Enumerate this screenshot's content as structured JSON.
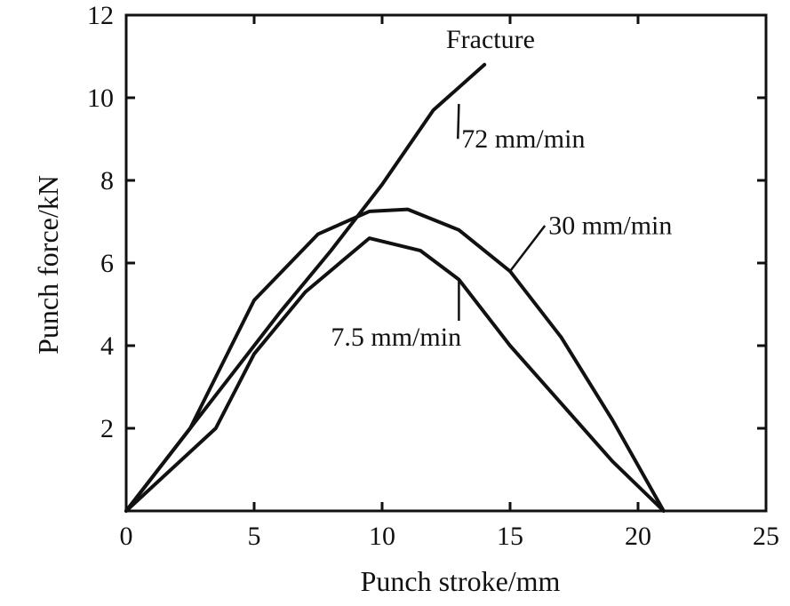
{
  "chart_data": {
    "type": "line",
    "title": "",
    "xlabel": "Punch stroke/mm",
    "ylabel": "Punch force/kN",
    "xlim": [
      0,
      25
    ],
    "ylim": [
      0,
      12
    ],
    "xticks": [
      0,
      5,
      10,
      15,
      20,
      25
    ],
    "yticks": [
      0,
      2,
      4,
      6,
      8,
      10,
      12
    ],
    "grid": false,
    "legend": "none",
    "series": [
      {
        "name": "72 mm/min",
        "x": [
          0,
          2,
          4,
          6,
          8,
          10,
          12,
          14
        ],
        "y": [
          0,
          1.6,
          3.2,
          4.8,
          6.3,
          7.9,
          9.7,
          10.8
        ]
      },
      {
        "name": "30 mm/min",
        "x": [
          0,
          2.5,
          5,
          7.5,
          9.5,
          11,
          13,
          15,
          17,
          19,
          21
        ],
        "y": [
          0,
          2.0,
          5.1,
          6.7,
          7.25,
          7.3,
          6.8,
          5.8,
          4.2,
          2.2,
          0
        ]
      },
      {
        "name": "7.5 mm/min",
        "x": [
          0,
          3.5,
          5,
          7,
          9.5,
          11.5,
          13,
          15,
          17,
          19,
          21
        ],
        "y": [
          0,
          2.0,
          3.8,
          5.3,
          6.6,
          6.3,
          5.6,
          4.0,
          2.6,
          1.2,
          0
        ]
      }
    ],
    "annotations": [
      {
        "text": "Fracture",
        "x": 12.5,
        "y": 11.2
      },
      {
        "text": "72 mm/min",
        "x": 13.1,
        "y": 8.8,
        "point_x": 13.0,
        "point_y": 9.85
      },
      {
        "text": "30 mm/min",
        "x": 16.5,
        "y": 6.7,
        "point_x": 15.0,
        "point_y": 5.8
      },
      {
        "text": "7.5 mm/min",
        "x": 8.0,
        "y": 4.0,
        "point_x": 13.0,
        "point_y": 5.6
      }
    ],
    "colors": {
      "line": "#111111",
      "background": "#ffffff"
    }
  }
}
